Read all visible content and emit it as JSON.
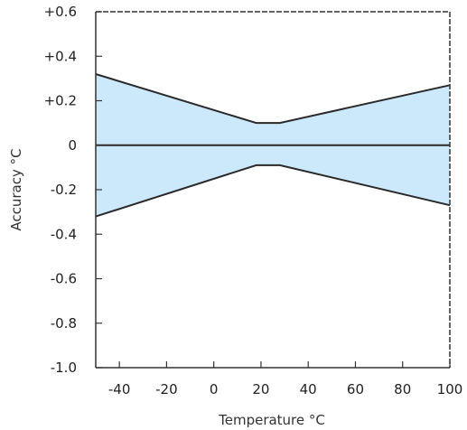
{
  "chart_data": {
    "type": "area",
    "title": "",
    "xlabel": "Temperature °C",
    "ylabel": "Accuracy °C",
    "xlim": [
      -50,
      100
    ],
    "ylim": [
      -1.0,
      0.6
    ],
    "x_ticks": [
      -40,
      -20,
      0,
      20,
      40,
      60,
      80,
      100
    ],
    "x_tick_labels": [
      "-40",
      "-20",
      "0",
      "20",
      "40",
      "60",
      "80",
      "100"
    ],
    "y_ticks": [
      0.6,
      0.4,
      0.2,
      0,
      -0.2,
      -0.4,
      -0.6,
      -0.8,
      -1.0
    ],
    "y_tick_labels": [
      "+0.6",
      "+0.4",
      "+0.2",
      "0",
      "-0.2",
      "-0.4",
      "-0.6",
      "-0.8",
      "-1.0"
    ],
    "grid": false,
    "band": {
      "x": [
        -50,
        18,
        28,
        100
      ],
      "upper": [
        0.32,
        0.1,
        0.1,
        0.27
      ],
      "lower": [
        -0.32,
        -0.09,
        -0.09,
        -0.27
      ]
    },
    "zero_line": 0,
    "colors": {
      "band_fill": "#cce9fb",
      "line": "#2a2a2a",
      "axis": "#333333"
    }
  }
}
